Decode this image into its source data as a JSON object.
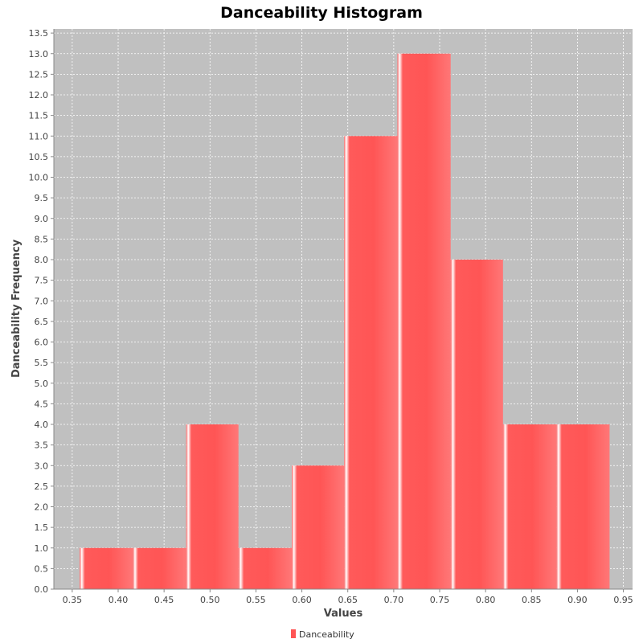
{
  "chart_data": {
    "type": "bar",
    "title": "Danceability Histogram",
    "xlabel": "Values",
    "ylabel": "Danceability Frequency",
    "xlim": [
      0.33,
      0.96
    ],
    "ylim": [
      0,
      13.6
    ],
    "x_ticks": [
      "0.35",
      "0.40",
      "0.45",
      "0.50",
      "0.55",
      "0.60",
      "0.65",
      "0.70",
      "0.75",
      "0.80",
      "0.85",
      "0.90",
      "0.95"
    ],
    "y_ticks": [
      "0.0",
      "0.5",
      "1.0",
      "1.5",
      "2.0",
      "2.5",
      "3.0",
      "3.5",
      "4.0",
      "4.5",
      "5.0",
      "5.5",
      "6.0",
      "6.5",
      "7.0",
      "7.5",
      "8.0",
      "8.5",
      "9.0",
      "9.5",
      "10.0",
      "10.5",
      "11.0",
      "11.5",
      "12.0",
      "12.5",
      "13.0",
      "13.5"
    ],
    "grid": true,
    "legend_position": "bottom",
    "series": [
      {
        "name": "Danceability",
        "color": "#ff5555",
        "bins": [
          {
            "start": 0.358,
            "end": 0.416,
            "value": 1
          },
          {
            "start": 0.416,
            "end": 0.474,
            "value": 1
          },
          {
            "start": 0.474,
            "end": 0.531,
            "value": 4
          },
          {
            "start": 0.531,
            "end": 0.589,
            "value": 1
          },
          {
            "start": 0.589,
            "end": 0.646,
            "value": 3
          },
          {
            "start": 0.646,
            "end": 0.704,
            "value": 11
          },
          {
            "start": 0.704,
            "end": 0.762,
            "value": 13
          },
          {
            "start": 0.762,
            "end": 0.819,
            "value": 8
          },
          {
            "start": 0.819,
            "end": 0.877,
            "value": 4
          },
          {
            "start": 0.877,
            "end": 0.935,
            "value": 4
          }
        ]
      }
    ]
  }
}
